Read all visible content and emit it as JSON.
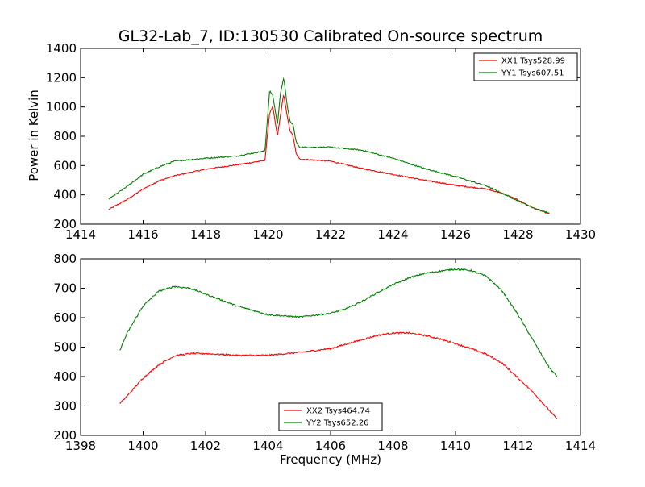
{
  "figure": {
    "title": "GL32-Lab_7, ID:130530 Calibrated On-source spectrum",
    "ylabel_top": "Power in Kelvin",
    "xlabel_bottom": "Frequency (MHz)"
  },
  "chart_data": [
    {
      "type": "line",
      "xlim": [
        1414,
        1430
      ],
      "ylim": [
        200,
        1400
      ],
      "xticks": [
        1414,
        1416,
        1418,
        1420,
        1422,
        1424,
        1426,
        1428,
        1430
      ],
      "yticks": [
        200,
        400,
        600,
        800,
        1000,
        1200,
        1400
      ],
      "grid": false,
      "legend_position": "top-right",
      "series": [
        {
          "name": "XX1 Tsys528.99",
          "color": "#ff0000",
          "x": [
            1414.9,
            1415.5,
            1416,
            1416.5,
            1417,
            1418,
            1419,
            1419.9,
            1420.05,
            1420.15,
            1420.3,
            1420.45,
            1420.5,
            1420.6,
            1420.7,
            1420.8,
            1420.9,
            1421,
            1422,
            1423,
            1424,
            1425,
            1426,
            1427,
            1427.5,
            1428,
            1428.5,
            1429
          ],
          "y": [
            300,
            370,
            440,
            495,
            530,
            575,
            605,
            635,
            960,
            1000,
            800,
            1020,
            1090,
            950,
            840,
            800,
            680,
            645,
            630,
            580,
            540,
            500,
            465,
            440,
            410,
            365,
            310,
            270
          ]
        },
        {
          "name": "YY1 Tsys607.51",
          "color": "#008000",
          "x": [
            1414.9,
            1415.5,
            1416,
            1416.5,
            1417,
            1418,
            1419,
            1419.9,
            1420.05,
            1420.15,
            1420.3,
            1420.4,
            1420.5,
            1420.6,
            1420.7,
            1420.8,
            1420.9,
            1421,
            1422,
            1423,
            1424,
            1425,
            1426,
            1427,
            1427.5,
            1428,
            1428.5,
            1429
          ],
          "y": [
            370,
            460,
            540,
            590,
            630,
            650,
            665,
            700,
            1110,
            1080,
            880,
            1100,
            1200,
            1030,
            900,
            880,
            760,
            725,
            725,
            705,
            650,
            580,
            525,
            460,
            410,
            360,
            310,
            275
          ]
        }
      ]
    },
    {
      "type": "line",
      "xlim": [
        1398,
        1414
      ],
      "ylim": [
        200,
        800
      ],
      "xticks": [
        1398,
        1400,
        1402,
        1404,
        1406,
        1408,
        1410,
        1412,
        1414
      ],
      "yticks": [
        200,
        300,
        400,
        500,
        600,
        700,
        800
      ],
      "grid": false,
      "legend_position": "bottom-center",
      "series": [
        {
          "name": "XX2 Tsys464.74",
          "color": "#ff0000",
          "x": [
            1399.25,
            1399.5,
            1400,
            1400.5,
            1401,
            1401.5,
            1402,
            1403,
            1404,
            1405,
            1406,
            1407,
            1407.5,
            1408,
            1408.5,
            1409,
            1409.5,
            1410,
            1410.5,
            1411,
            1411.5,
            1412,
            1412.5,
            1413,
            1413.25
          ],
          "y": [
            308,
            335,
            395,
            440,
            470,
            478,
            478,
            472,
            472,
            482,
            495,
            525,
            540,
            548,
            548,
            540,
            528,
            512,
            495,
            475,
            445,
            395,
            345,
            285,
            255
          ]
        },
        {
          "name": "YY2 Tsys652.26",
          "color": "#008000",
          "x": [
            1399.25,
            1399.5,
            1400,
            1400.5,
            1401,
            1401.5,
            1402,
            1402.5,
            1403,
            1404,
            1405,
            1406,
            1406.5,
            1407,
            1407.5,
            1408,
            1408.5,
            1409,
            1409.5,
            1410,
            1410.5,
            1411,
            1411.5,
            1412,
            1412.5,
            1413,
            1413.25
          ],
          "y": [
            488,
            550,
            640,
            690,
            706,
            700,
            680,
            660,
            640,
            610,
            602,
            615,
            630,
            655,
            685,
            712,
            735,
            750,
            758,
            765,
            760,
            740,
            690,
            610,
            520,
            430,
            400
          ]
        }
      ]
    }
  ]
}
